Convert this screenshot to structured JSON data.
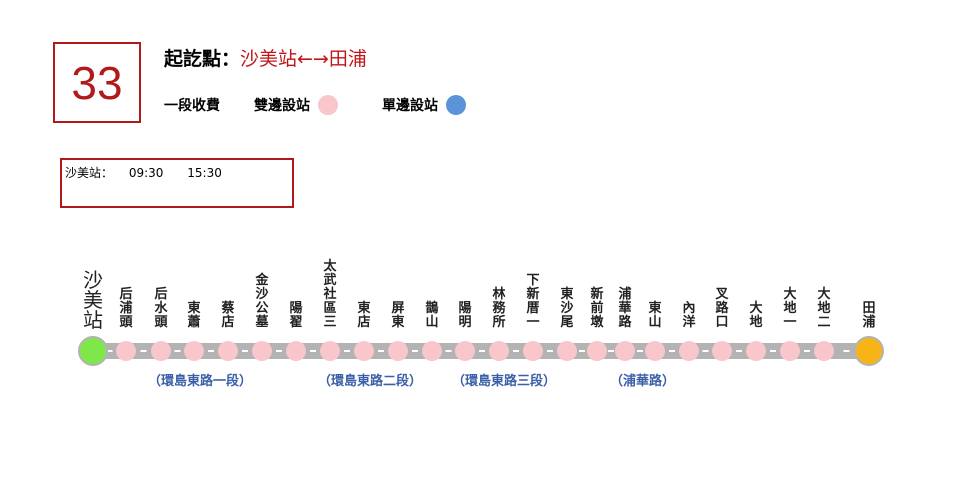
{
  "route": {
    "number": "33",
    "title_label": "起訖點：",
    "destination": "沙美站←→田浦"
  },
  "legend": {
    "fare": "一段收費",
    "both_sides": "雙邊設站",
    "single_side": "單邊設站"
  },
  "colors": {
    "both_sides": "#f9c6cc",
    "single_side": "#5b93d8",
    "start": "#7ee84a",
    "end": "#f7b416",
    "line": "#b3b3b3",
    "segment_text": "#3a5fa8",
    "accent": "#b11a1a"
  },
  "timetable": {
    "station": "沙美站：",
    "times": [
      "09:30",
      "15:30"
    ]
  },
  "stops": [
    {
      "name": "沙美站",
      "type": "start"
    },
    {
      "name": "后浦頭",
      "type": "both"
    },
    {
      "name": "后水頭",
      "type": "both"
    },
    {
      "name": "東蕭",
      "type": "both"
    },
    {
      "name": "蔡店",
      "type": "both"
    },
    {
      "name": "金沙公墓",
      "type": "both"
    },
    {
      "name": "陽翟",
      "type": "both"
    },
    {
      "name": "太武社區三",
      "type": "both"
    },
    {
      "name": "東店",
      "type": "both"
    },
    {
      "name": "屏東",
      "type": "both"
    },
    {
      "name": "鵲山",
      "type": "both"
    },
    {
      "name": "陽明",
      "type": "both"
    },
    {
      "name": "林務所",
      "type": "both"
    },
    {
      "name": "下新厝一",
      "type": "both"
    },
    {
      "name": "東沙尾",
      "type": "both"
    },
    {
      "name": "新前墩",
      "type": "both"
    },
    {
      "name": "浦華路",
      "type": "both"
    },
    {
      "name": "東山",
      "type": "both"
    },
    {
      "name": "內洋",
      "type": "both"
    },
    {
      "name": "叉路口",
      "type": "both"
    },
    {
      "name": "大地",
      "type": "both"
    },
    {
      "name": "大地一",
      "type": "both"
    },
    {
      "name": "大地二",
      "type": "both"
    },
    {
      "name": "田浦",
      "type": "end"
    }
  ],
  "segments": [
    "（環島東路一段）",
    "（環島東路二段）",
    "（環島東路三段）",
    "（浦華路）"
  ]
}
